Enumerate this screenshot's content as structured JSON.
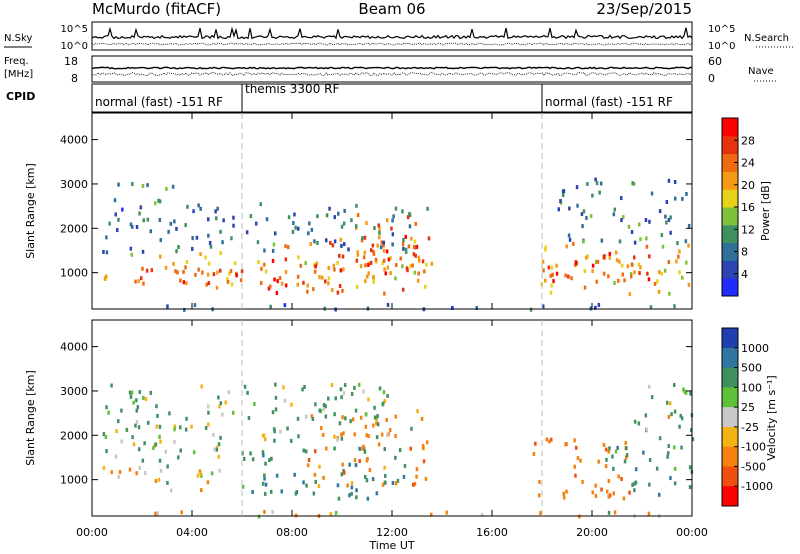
{
  "header": {
    "station": "McMurdo (fitACF)",
    "beam": "Beam 06",
    "date": "23/Sep/2015"
  },
  "strips": {
    "nsky_label": "N.Sky",
    "nsearch_label": "N.Search",
    "noise_ticks_left": [
      "10^5",
      "10^0"
    ],
    "noise_ticks_right": [
      "10^5",
      "10^0"
    ],
    "freq_label_top": "Freq.",
    "freq_label_bottom": "[MHz]",
    "freq_ticks": [
      "18",
      "8"
    ],
    "nave_label": "Nave",
    "nave_ticks": [
      "60",
      "0"
    ],
    "cpid_label": "CPID",
    "modes": [
      "normal (fast) -151 RF",
      "themis 3300 RF",
      "normal (fast) -151 RF"
    ]
  },
  "chart_data": [
    {
      "type": "heatmap",
      "name": "power-panel",
      "title": "",
      "xlabel": "Time UT",
      "ylabel": "Slant Range [km]",
      "x_ticks": [
        "00:00",
        "04:00",
        "08:00",
        "12:00",
        "16:00",
        "20:00",
        "00:00"
      ],
      "xlim": [
        0,
        24
      ],
      "y_ticks": [
        "1000",
        "2000",
        "3000",
        "4000"
      ],
      "ylim": [
        180,
        4600
      ],
      "colorbar": {
        "label": "Power [dB]",
        "ticks": [
          "4",
          "8",
          "12",
          "16",
          "20",
          "24",
          "28"
        ],
        "range": [
          0,
          32
        ],
        "colors": [
          "#1f2bff",
          "#2b44b0",
          "#2f6f9a",
          "#3f9160",
          "#7fc23a",
          "#e8d21a",
          "#f59a14",
          "#f06a0f",
          "#e6330f",
          "#ff0000"
        ]
      },
      "regions": [
        {
          "t0": 0.4,
          "t1": 13.6,
          "r0": 700,
          "r1": 1500,
          "power": 20
        },
        {
          "t0": 0.6,
          "t1": 6.0,
          "r0": 800,
          "r1": 1150,
          "power": 26
        },
        {
          "t0": 7.0,
          "t1": 13.0,
          "r0": 550,
          "r1": 1900,
          "power": 26
        },
        {
          "t0": 10.5,
          "t1": 13.5,
          "r0": 1000,
          "r1": 2400,
          "power": 24
        },
        {
          "t0": 0.4,
          "t1": 3.2,
          "r0": 2600,
          "r1": 3100,
          "power": 10
        },
        {
          "t0": 0.4,
          "t1": 13.5,
          "r0": 1500,
          "r1": 2600,
          "power": 8
        },
        {
          "t0": 17.6,
          "t1": 24,
          "r0": 550,
          "r1": 1700,
          "power": 20
        },
        {
          "t0": 18.0,
          "t1": 22.5,
          "r0": 650,
          "r1": 1500,
          "power": 27
        },
        {
          "t0": 18.6,
          "t1": 24,
          "r0": 1700,
          "r1": 3200,
          "power": 9
        },
        {
          "t0": 0.4,
          "t1": 24,
          "r0": 200,
          "r1": 320,
          "power": 6
        }
      ]
    },
    {
      "type": "heatmap",
      "name": "velocity-panel",
      "title": "",
      "xlabel": "Time UT",
      "ylabel": "Slant Range [km]",
      "x_ticks": [
        "00:00",
        "04:00",
        "08:00",
        "12:00",
        "16:00",
        "20:00",
        "00:00"
      ],
      "xlim": [
        0,
        24
      ],
      "y_ticks": [
        "1000",
        "2000",
        "3000",
        "4000"
      ],
      "ylim": [
        180,
        4600
      ],
      "colorbar": {
        "label": "Velocity [m s⁻¹]",
        "ticks": [
          "1000",
          "500",
          "100",
          "25",
          "-25",
          "-100",
          "-500",
          "-1000"
        ],
        "colors": [
          "#1f3fb0",
          "#2f77a0",
          "#3f9160",
          "#5fc13a",
          "#c8c8c8",
          "#f5b214",
          "#f5820f",
          "#f0500f",
          "#ff0000"
        ]
      },
      "regions": [
        {
          "t0": 0.4,
          "t1": 6.0,
          "r0": 800,
          "r1": 1300,
          "vel": -100
        },
        {
          "t0": 0.4,
          "t1": 6.0,
          "r0": 1300,
          "r1": 1900,
          "vel": 100
        },
        {
          "t0": 6.0,
          "t1": 12.5,
          "r0": 600,
          "r1": 1800,
          "vel": 500
        },
        {
          "t0": 8.5,
          "t1": 13.5,
          "r0": 900,
          "r1": 2500,
          "vel": -300
        },
        {
          "t0": 0.4,
          "t1": 3.0,
          "r0": 2650,
          "r1": 2900,
          "vel": 25
        },
        {
          "t0": 0.4,
          "t1": 13.0,
          "r0": 1900,
          "r1": 3200,
          "vel": 150
        },
        {
          "t0": 17.5,
          "t1": 21.5,
          "r0": 600,
          "r1": 2000,
          "vel": -400
        },
        {
          "t0": 20.5,
          "t1": 24,
          "r0": 650,
          "r1": 1800,
          "vel": 300
        },
        {
          "t0": 21.5,
          "t1": 24,
          "r0": 1800,
          "r1": 3200,
          "vel": 120
        },
        {
          "t0": 0.4,
          "t1": 24,
          "r0": 200,
          "r1": 320,
          "vel": -50
        }
      ]
    }
  ]
}
